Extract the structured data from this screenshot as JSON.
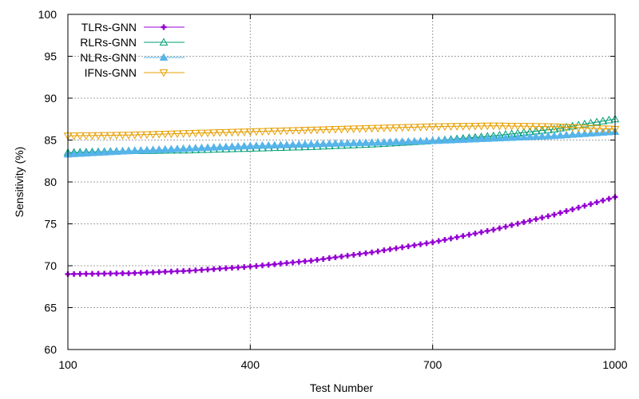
{
  "chart_data": {
    "type": "line",
    "title": "",
    "xlabel": "Test Number",
    "ylabel": "Sensitivity (%)",
    "xlim": [
      100,
      1000
    ],
    "ylim": [
      60,
      100
    ],
    "xticks": [
      100,
      400,
      700,
      1000
    ],
    "yticks": [
      60,
      65,
      70,
      75,
      80,
      85,
      90,
      95,
      100
    ],
    "grid": true,
    "legend_position": "top-left",
    "point_step": 10,
    "series": [
      {
        "name": "TLRs-GNN",
        "color": "#9400d3",
        "marker": "plus-filled",
        "x": [
          100,
          200,
          300,
          400,
          500,
          600,
          700,
          800,
          900,
          1000
        ],
        "y": [
          69.0,
          69.1,
          69.4,
          69.9,
          70.6,
          71.6,
          72.8,
          74.3,
          76.1,
          78.2
        ]
      },
      {
        "name": "RLRs-GNN",
        "color": "#009e73",
        "marker": "triangle-open",
        "x": [
          100,
          200,
          300,
          400,
          500,
          600,
          700,
          800,
          900,
          1000
        ],
        "y": [
          83.5,
          83.7,
          83.8,
          84.0,
          84.2,
          84.5,
          84.9,
          85.5,
          86.3,
          87.5
        ]
      },
      {
        "name": "NLRs-GNN",
        "color": "#56b4e9",
        "marker": "triangle-filled",
        "x": [
          100,
          200,
          300,
          400,
          500,
          600,
          700,
          800,
          900,
          1000
        ],
        "y": [
          83.3,
          83.7,
          84.0,
          84.3,
          84.5,
          84.7,
          84.9,
          85.2,
          85.5,
          86.0
        ]
      },
      {
        "name": "IFNs-GNN",
        "color": "#e69f00",
        "marker": "triangle-down-open",
        "x": [
          100,
          200,
          300,
          400,
          500,
          600,
          700,
          800,
          900,
          1000
        ],
        "y": [
          85.5,
          85.6,
          85.8,
          86.0,
          86.2,
          86.4,
          86.6,
          86.7,
          86.6,
          86.3
        ]
      }
    ]
  }
}
